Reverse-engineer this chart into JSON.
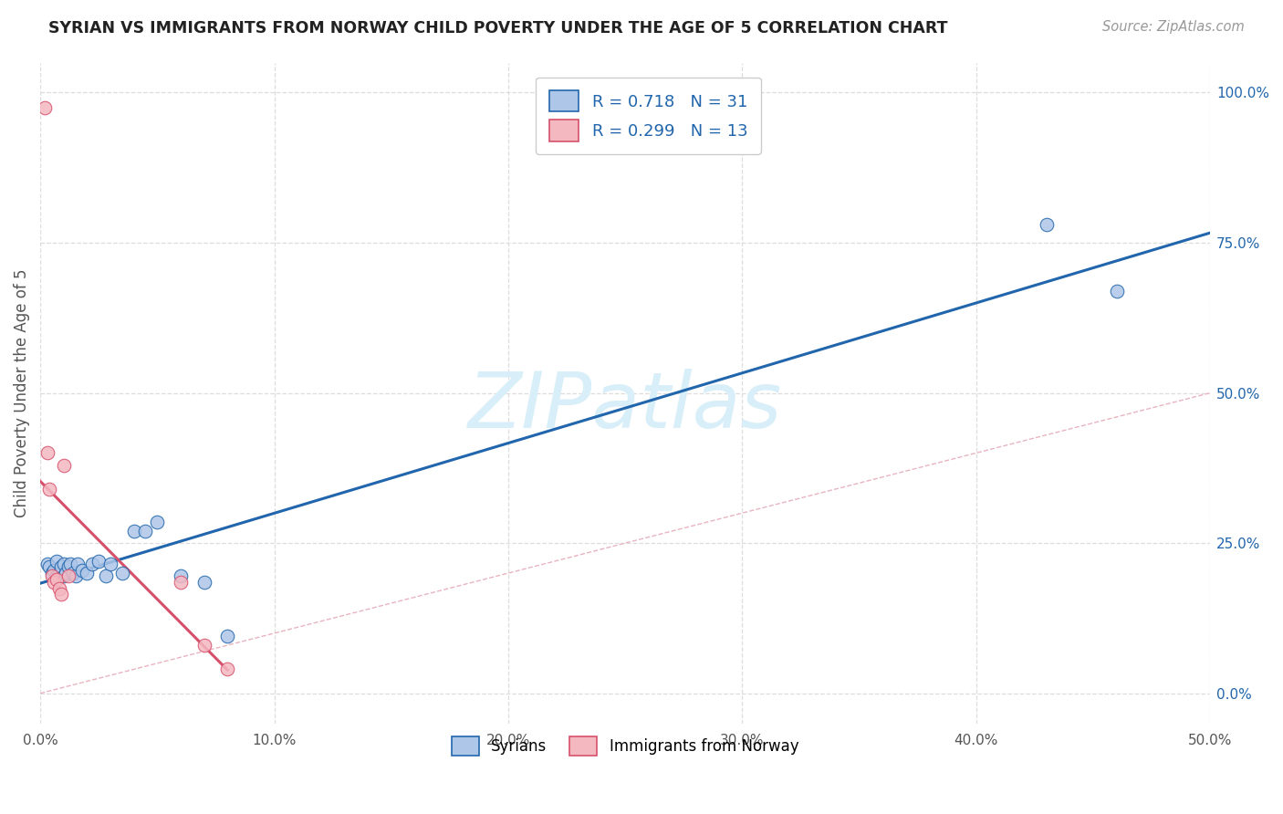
{
  "title": "SYRIAN VS IMMIGRANTS FROM NORWAY CHILD POVERTY UNDER THE AGE OF 5 CORRELATION CHART",
  "source": "Source: ZipAtlas.com",
  "ylabel": "Child Poverty Under the Age of 5",
  "xlim": [
    0.0,
    0.5
  ],
  "ylim": [
    -0.05,
    1.05
  ],
  "xtick_labels": [
    "0.0%",
    "10.0%",
    "20.0%",
    "30.0%",
    "40.0%",
    "50.0%"
  ],
  "xtick_vals": [
    0.0,
    0.1,
    0.2,
    0.3,
    0.4,
    0.5
  ],
  "ytick_labels": [
    "0.0%",
    "25.0%",
    "50.0%",
    "75.0%",
    "100.0%"
  ],
  "ytick_vals": [
    0.0,
    0.25,
    0.5,
    0.75,
    1.0
  ],
  "syrians_x": [
    0.003,
    0.004,
    0.005,
    0.006,
    0.007,
    0.007,
    0.008,
    0.009,
    0.01,
    0.01,
    0.011,
    0.012,
    0.013,
    0.014,
    0.015,
    0.016,
    0.018,
    0.02,
    0.022,
    0.025,
    0.028,
    0.03,
    0.035,
    0.04,
    0.045,
    0.05,
    0.06,
    0.07,
    0.08,
    0.43,
    0.46
  ],
  "syrians_y": [
    0.215,
    0.21,
    0.2,
    0.205,
    0.195,
    0.22,
    0.2,
    0.21,
    0.195,
    0.215,
    0.2,
    0.21,
    0.215,
    0.2,
    0.195,
    0.215,
    0.205,
    0.2,
    0.215,
    0.22,
    0.195,
    0.215,
    0.2,
    0.27,
    0.27,
    0.285,
    0.195,
    0.185,
    0.095,
    0.78,
    0.67
  ],
  "norway_x": [
    0.002,
    0.003,
    0.004,
    0.005,
    0.006,
    0.007,
    0.008,
    0.009,
    0.01,
    0.012,
    0.06,
    0.07,
    0.08
  ],
  "norway_y": [
    0.975,
    0.4,
    0.34,
    0.195,
    0.185,
    0.19,
    0.175,
    0.165,
    0.38,
    0.195,
    0.185,
    0.08,
    0.04
  ],
  "syrians_R": 0.718,
  "syrians_N": 31,
  "norway_R": 0.299,
  "norway_N": 13,
  "syrians_fill": "#aec6e8",
  "syrians_edge": "#2166ac",
  "norway_fill": "#f4b8c1",
  "norway_edge": "#d6506a",
  "diagonal_color": "#e8b4c0",
  "grid_color": "#dddddd",
  "background": "#ffffff",
  "watermark": "ZIPatlas",
  "watermark_color": "#d8eef8"
}
